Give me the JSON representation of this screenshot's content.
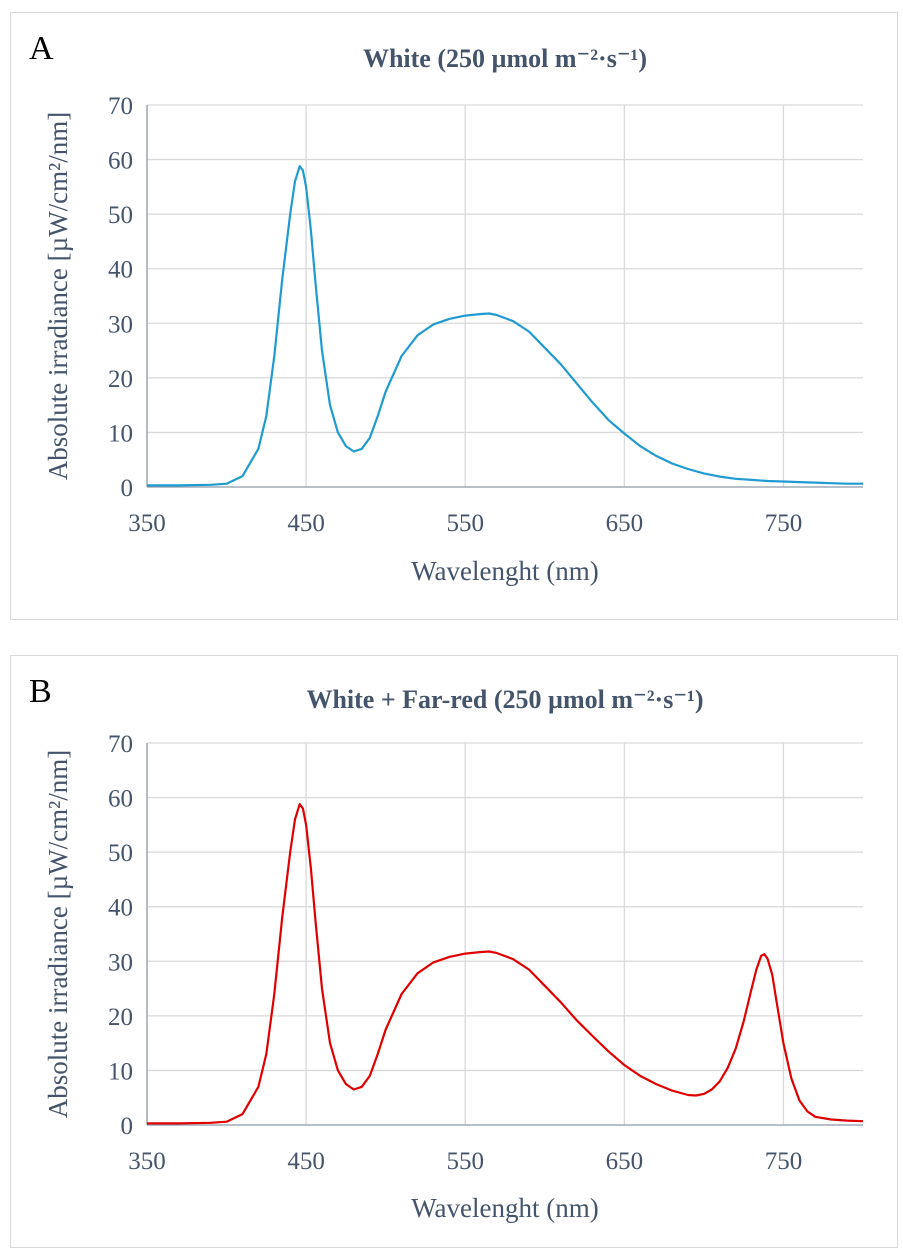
{
  "chart_data": [
    {
      "type": "line",
      "panel_label": "A",
      "title": "White (250 µmol m⁻²·s⁻¹)",
      "xlabel": "Wavelenght (nm)",
      "ylabel": "Absolute irradiance [µW/cm²/nm]",
      "xlim": [
        350,
        800
      ],
      "ylim": [
        0,
        70
      ],
      "xticks": [
        350,
        450,
        550,
        650,
        750
      ],
      "yticks": [
        0,
        10,
        20,
        30,
        40,
        50,
        60,
        70
      ],
      "grid": true,
      "legend": "none",
      "series": [
        {
          "color": "#1f9bd1",
          "x": [
            350,
            370,
            390,
            400,
            410,
            420,
            425,
            430,
            435,
            440,
            443,
            446,
            448,
            450,
            453,
            456,
            460,
            465,
            470,
            475,
            480,
            485,
            490,
            495,
            500,
            510,
            520,
            530,
            540,
            550,
            560,
            565,
            570,
            580,
            590,
            600,
            610,
            620,
            630,
            640,
            650,
            660,
            670,
            680,
            690,
            700,
            710,
            720,
            730,
            740,
            750,
            760,
            770,
            780,
            790,
            800
          ],
          "y": [
            0.3,
            0.3,
            0.4,
            0.6,
            2,
            7,
            13,
            24,
            38,
            50,
            56,
            58.8,
            58,
            55,
            47,
            37,
            25,
            15,
            10,
            7.5,
            6.5,
            7,
            9,
            13,
            17.5,
            24,
            27.8,
            29.8,
            30.8,
            31.4,
            31.7,
            31.8,
            31.5,
            30.4,
            28.5,
            25.5,
            22.5,
            19,
            15.5,
            12.3,
            9.8,
            7.5,
            5.7,
            4.3,
            3.3,
            2.5,
            1.9,
            1.5,
            1.3,
            1.1,
            1.0,
            0.9,
            0.8,
            0.7,
            0.6,
            0.6
          ]
        }
      ]
    },
    {
      "type": "line",
      "panel_label": "B",
      "title": "White + Far-red (250 µmol m⁻²·s⁻¹)",
      "xlabel": "Wavelenght (nm)",
      "ylabel": "Absolute irradiance [µW/cm²/nm]",
      "xlim": [
        350,
        800
      ],
      "ylim": [
        0,
        70
      ],
      "xticks": [
        350,
        450,
        550,
        650,
        750
      ],
      "yticks": [
        0,
        10,
        20,
        30,
        40,
        50,
        60,
        70
      ],
      "grid": true,
      "legend": "none",
      "series": [
        {
          "color": "#e00000",
          "x": [
            350,
            370,
            390,
            400,
            410,
            420,
            425,
            430,
            435,
            440,
            443,
            446,
            448,
            450,
            453,
            456,
            460,
            465,
            470,
            475,
            480,
            485,
            490,
            495,
            500,
            510,
            520,
            530,
            540,
            550,
            560,
            565,
            570,
            580,
            590,
            600,
            610,
            620,
            630,
            640,
            650,
            660,
            670,
            680,
            690,
            695,
            700,
            705,
            710,
            715,
            720,
            725,
            730,
            733,
            736,
            738,
            740,
            743,
            746,
            750,
            755,
            760,
            765,
            770,
            780,
            790,
            800
          ],
          "y": [
            0.3,
            0.3,
            0.4,
            0.6,
            2,
            7,
            13,
            24,
            38,
            50,
            56,
            58.8,
            58,
            55,
            47,
            37,
            25,
            15,
            10,
            7.5,
            6.5,
            7,
            9,
            13,
            17.5,
            24,
            27.8,
            29.8,
            30.8,
            31.4,
            31.7,
            31.8,
            31.5,
            30.4,
            28.5,
            25.5,
            22.5,
            19.2,
            16.3,
            13.5,
            11,
            9,
            7.5,
            6.3,
            5.5,
            5.4,
            5.7,
            6.5,
            8,
            10.5,
            14,
            19,
            25,
            28.5,
            31,
            31.3,
            30.5,
            27.5,
            22,
            15,
            8.5,
            4.5,
            2.5,
            1.5,
            1,
            0.8,
            0.7
          ]
        }
      ]
    }
  ]
}
